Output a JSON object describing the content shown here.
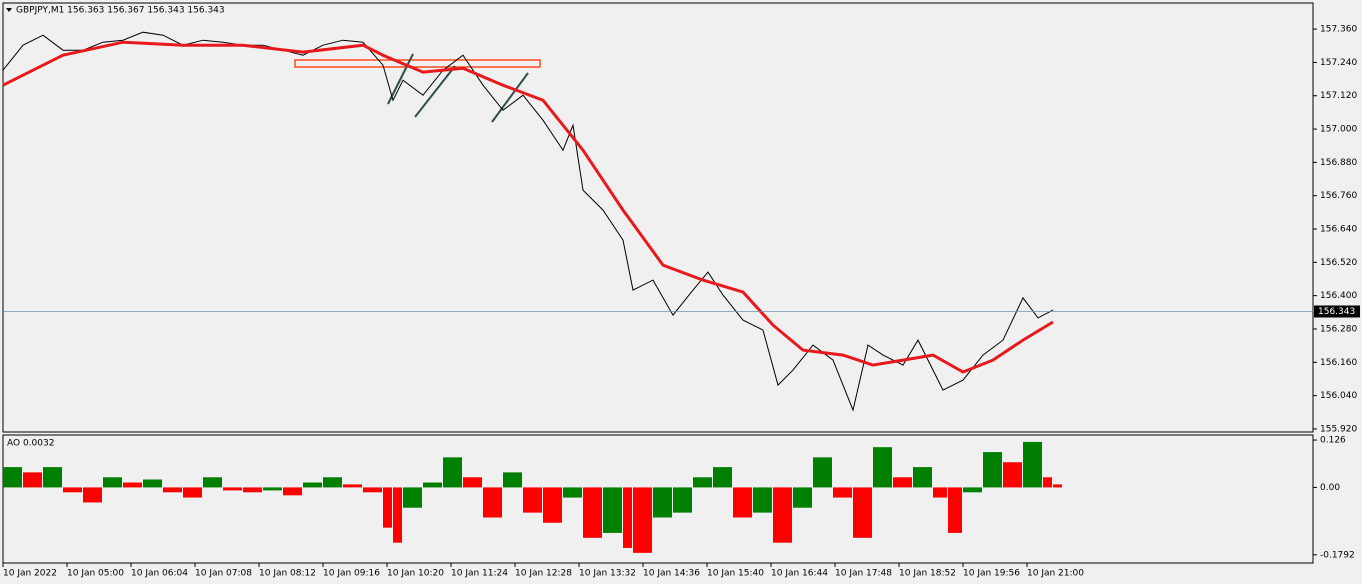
{
  "chart_data": [
    {
      "type": "line",
      "title": "GBPJPY,M1  156.363 156.367 156.343 156.343",
      "xlim": [
        0,
        1310
      ],
      "ylim": [
        155.909,
        157.454
      ],
      "yticks": [
        {
          "value": 157.36,
          "label": "157.360"
        },
        {
          "value": 157.24,
          "label": "157.240"
        },
        {
          "value": 157.12,
          "label": "157.120"
        },
        {
          "value": 157.0,
          "label": "157.000"
        },
        {
          "value": 156.88,
          "label": "156.880"
        },
        {
          "value": 156.76,
          "label": "156.760"
        },
        {
          "value": 156.64,
          "label": "156.640"
        },
        {
          "value": 156.52,
          "label": "156.520"
        },
        {
          "value": 156.4,
          "label": "156.400"
        },
        {
          "value": 156.28,
          "label": "156.280"
        },
        {
          "value": 156.16,
          "label": "156.160"
        },
        {
          "value": 156.04,
          "label": "156.040"
        },
        {
          "value": 155.92,
          "label": "155.920"
        }
      ],
      "last_price": 156.343,
      "series": [
        {
          "color": "#000000",
          "x": [
            0,
            20,
            40,
            60,
            80,
            100,
            120,
            140,
            160,
            180,
            200,
            220,
            240,
            260,
            280,
            300,
            320,
            340,
            360,
            380,
            390,
            400,
            420,
            440,
            460,
            480,
            500,
            520,
            540,
            560,
            570,
            580,
            600,
            620,
            630,
            650,
            670,
            690,
            705,
            720,
            740,
            760,
            775,
            790,
            810,
            830,
            850,
            865,
            880,
            900,
            915,
            940,
            960,
            980,
            1000,
            1020,
            1035,
            1050
          ],
          "values": [
            157.212,
            157.302,
            157.338,
            157.284,
            157.284,
            157.313,
            157.32,
            157.349,
            157.338,
            157.302,
            157.32,
            157.313,
            157.302,
            157.302,
            157.284,
            157.266,
            157.302,
            157.32,
            157.313,
            157.23,
            157.104,
            157.176,
            157.122,
            157.212,
            157.266,
            157.158,
            157.068,
            157.122,
            157.032,
            156.924,
            157.014,
            156.78,
            156.708,
            156.6,
            156.42,
            156.456,
            156.33,
            156.42,
            156.485,
            156.402,
            156.312,
            156.276,
            156.078,
            156.132,
            156.222,
            156.168,
            155.988,
            156.222,
            156.186,
            156.15,
            156.24,
            156.06,
            156.096,
            156.186,
            156.24,
            156.392,
            156.32,
            156.348
          ]
        },
        {
          "color": "#e8191c",
          "x": [
            0,
            60,
            120,
            180,
            240,
            300,
            360,
            380,
            420,
            460,
            500,
            540,
            580,
            620,
            660,
            700,
            740,
            770,
            800,
            840,
            870,
            900,
            930,
            960,
            990,
            1020,
            1050
          ],
          "values": [
            157.158,
            157.266,
            157.313,
            157.302,
            157.302,
            157.277,
            157.302,
            157.266,
            157.205,
            157.219,
            157.158,
            157.104,
            156.924,
            156.708,
            156.51,
            156.456,
            156.413,
            156.294,
            156.204,
            156.186,
            156.15,
            156.168,
            156.186,
            156.125,
            156.168,
            156.24,
            156.305
          ]
        }
      ]
    },
    {
      "type": "bar",
      "title": "AO 0.0032",
      "xlim": [
        0,
        1310
      ],
      "ylim": [
        -0.201,
        0.1394
      ],
      "yticks": [
        0.126,
        {
          "value": 0,
          "label": "0.00"
        },
        -0.1792
      ],
      "up_color": "#008000",
      "down_color": "#ff0000",
      "xticks": [
        {
          "value": 0,
          "label": "10 Jan 2022"
        },
        {
          "value": 64,
          "label": "10 Jan 05:00"
        },
        {
          "value": 128,
          "label": "10 Jan 06:04"
        },
        {
          "value": 192,
          "label": "10 Jan 07:08"
        },
        {
          "value": 256,
          "label": "10 Jan 08:12"
        },
        {
          "value": 320,
          "label": "10 Jan 09:16"
        },
        {
          "value": 384,
          "label": "10 Jan 10:20"
        },
        {
          "value": 448,
          "label": "10 Jan 11:24"
        },
        {
          "value": 512,
          "label": "10 Jan 12:28"
        },
        {
          "value": 576,
          "label": "10 Jan 13:32"
        },
        {
          "value": 640,
          "label": "10 Jan 14:36"
        },
        {
          "value": 704,
          "label": "10 Jan 15:40"
        },
        {
          "value": 768,
          "label": "10 Jan 16:44"
        },
        {
          "value": 832,
          "label": "10 Jan 17:48"
        },
        {
          "value": 896,
          "label": "10 Jan 18:52"
        },
        {
          "value": 960,
          "label": "10 Jan 19:56"
        },
        {
          "value": 1024,
          "label": "10 Jan 21:00"
        }
      ],
      "x": [
        0,
        20,
        40,
        60,
        80,
        100,
        120,
        140,
        160,
        180,
        200,
        220,
        240,
        260,
        280,
        300,
        320,
        340,
        360,
        380,
        390,
        400,
        420,
        440,
        460,
        480,
        500,
        520,
        540,
        560,
        580,
        600,
        620,
        630,
        650,
        670,
        690,
        710,
        730,
        750,
        770,
        790,
        810,
        830,
        850,
        870,
        890,
        910,
        930,
        945,
        960,
        980,
        1000,
        1020,
        1040,
        1050
      ],
      "values": [
        0.054,
        0.04,
        0.054,
        -0.013,
        -0.04,
        0.027,
        0.013,
        0.021,
        -0.013,
        -0.027,
        0.027,
        -0.008,
        -0.013,
        -0.008,
        -0.021,
        0.013,
        0.027,
        0.008,
        -0.013,
        -0.107,
        -0.147,
        -0.054,
        0.013,
        0.08,
        0.027,
        -0.08,
        0.04,
        -0.067,
        -0.094,
        -0.027,
        -0.134,
        -0.121,
        -0.161,
        -0.174,
        -0.08,
        -0.067,
        0.027,
        0.054,
        -0.08,
        -0.067,
        -0.147,
        -0.054,
        0.08,
        -0.027,
        -0.134,
        0.107,
        0.027,
        0.054,
        -0.027,
        -0.121,
        -0.013,
        0.094,
        0.067,
        0.121,
        0.027,
        0.008
      ]
    }
  ]
}
